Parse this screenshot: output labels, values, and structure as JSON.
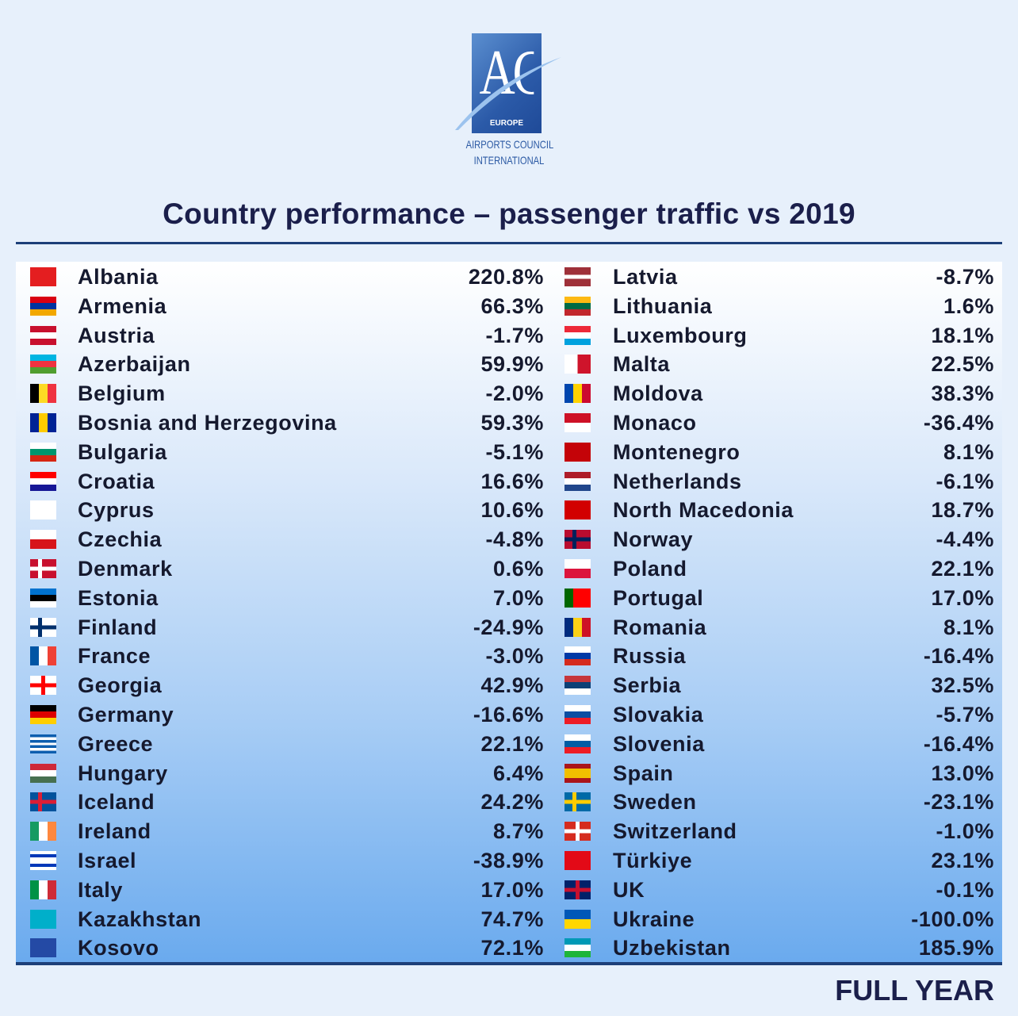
{
  "logo": {
    "acronym": "ACI",
    "region": "EUROPE",
    "line1": "AIRPORTS COUNCIL",
    "line2": "INTERNATIONAL"
  },
  "title": "Country performance – passenger traffic vs 2019",
  "footer": "FULL YEAR",
  "chart_data": {
    "type": "table",
    "title": "Country performance – passenger traffic vs 2019",
    "period": "FULL YEAR",
    "unit": "%",
    "columns": [
      [
        {
          "country": "Albania",
          "value": "220.8%",
          "flag": {
            "t": "s",
            "c": [
              "#e41e20"
            ]
          }
        },
        {
          "country": "Armenia",
          "value": "66.3%",
          "flag": {
            "t": "h",
            "c": [
              "#d90012",
              "#0033a0",
              "#f2a800"
            ]
          }
        },
        {
          "country": "Austria",
          "value": "-1.7%",
          "flag": {
            "t": "h",
            "c": [
              "#c8102e",
              "#ffffff",
              "#c8102e"
            ]
          }
        },
        {
          "country": "Azerbaijan",
          "value": "59.9%",
          "flag": {
            "t": "h",
            "c": [
              "#00b5e2",
              "#ef3340",
              "#509e2f"
            ]
          }
        },
        {
          "country": "Belgium",
          "value": "-2.0%",
          "flag": {
            "t": "v",
            "c": [
              "#000000",
              "#fdda24",
              "#ef3340"
            ]
          }
        },
        {
          "country": "Bosnia and Herzegovina",
          "value": "59.3%",
          "flag": {
            "t": "v",
            "c": [
              "#002395",
              "#fecb00",
              "#002395"
            ]
          }
        },
        {
          "country": "Bulgaria",
          "value": "-5.1%",
          "flag": {
            "t": "h",
            "c": [
              "#ffffff",
              "#00966e",
              "#d62612"
            ]
          }
        },
        {
          "country": "Croatia",
          "value": "16.6%",
          "flag": {
            "t": "h",
            "c": [
              "#ff0000",
              "#ffffff",
              "#171796"
            ]
          }
        },
        {
          "country": "Cyprus",
          "value": "10.6%",
          "flag": {
            "t": "s",
            "c": [
              "#ffffff"
            ]
          }
        },
        {
          "country": "Czechia",
          "value": "-4.8%",
          "flag": {
            "t": "h",
            "c": [
              "#ffffff",
              "#d7141a"
            ]
          }
        },
        {
          "country": "Denmark",
          "value": "0.6%",
          "flag": {
            "t": "x",
            "c": [
              "#c8102e",
              "#ffffff"
            ]
          }
        },
        {
          "country": "Estonia",
          "value": "7.0%",
          "flag": {
            "t": "h",
            "c": [
              "#0072ce",
              "#000000",
              "#ffffff"
            ]
          }
        },
        {
          "country": "Finland",
          "value": "-24.9%",
          "flag": {
            "t": "x",
            "c": [
              "#ffffff",
              "#002f6c"
            ]
          }
        },
        {
          "country": "France",
          "value": "-3.0%",
          "flag": {
            "t": "v",
            "c": [
              "#0055a4",
              "#ffffff",
              "#ef4135"
            ]
          }
        },
        {
          "country": "Georgia",
          "value": "42.9%",
          "flag": {
            "t": "p",
            "c": [
              "#ffffff",
              "#ff0000"
            ]
          }
        },
        {
          "country": "Germany",
          "value": "-16.6%",
          "flag": {
            "t": "h",
            "c": [
              "#000000",
              "#dd0000",
              "#ffce00"
            ]
          }
        },
        {
          "country": "Greece",
          "value": "22.1%",
          "flag": {
            "t": "h",
            "c": [
              "#0d5eaf",
              "#ffffff",
              "#0d5eaf",
              "#ffffff",
              "#0d5eaf",
              "#ffffff",
              "#0d5eaf"
            ]
          }
        },
        {
          "country": "Hungary",
          "value": "6.4%",
          "flag": {
            "t": "h",
            "c": [
              "#ce2939",
              "#ffffff",
              "#477050"
            ]
          }
        },
        {
          "country": "Iceland",
          "value": "24.2%",
          "flag": {
            "t": "x",
            "c": [
              "#02529c",
              "#dc1e35"
            ]
          }
        },
        {
          "country": "Ireland",
          "value": "8.7%",
          "flag": {
            "t": "v",
            "c": [
              "#169b62",
              "#ffffff",
              "#ff883e"
            ]
          }
        },
        {
          "country": "Israel",
          "value": "-38.9%",
          "flag": {
            "t": "h",
            "c": [
              "#ffffff",
              "#0038b8",
              "#ffffff",
              "#ffffff",
              "#0038b8",
              "#ffffff"
            ]
          }
        },
        {
          "country": "Italy",
          "value": "17.0%",
          "flag": {
            "t": "v",
            "c": [
              "#009246",
              "#ffffff",
              "#ce2b37"
            ]
          }
        },
        {
          "country": "Kazakhstan",
          "value": "74.7%",
          "flag": {
            "t": "s",
            "c": [
              "#00afca"
            ]
          }
        },
        {
          "country": "Kosovo",
          "value": "72.1%",
          "flag": {
            "t": "s",
            "c": [
              "#244aa5"
            ]
          }
        }
      ],
      [
        {
          "country": "Latvia",
          "value": "-8.7%",
          "flag": {
            "t": "h",
            "c": [
              "#9e3039",
              "#9e3039",
              "#ffffff",
              "#9e3039",
              "#9e3039"
            ]
          }
        },
        {
          "country": "Lithuania",
          "value": "1.6%",
          "flag": {
            "t": "h",
            "c": [
              "#fdb913",
              "#006a44",
              "#c1272d"
            ]
          }
        },
        {
          "country": "Luxembourg",
          "value": "18.1%",
          "flag": {
            "t": "h",
            "c": [
              "#ed2939",
              "#ffffff",
              "#00a1de"
            ]
          }
        },
        {
          "country": "Malta",
          "value": "22.5%",
          "flag": {
            "t": "v",
            "c": [
              "#ffffff",
              "#cf142b"
            ]
          }
        },
        {
          "country": "Moldova",
          "value": "38.3%",
          "flag": {
            "t": "v",
            "c": [
              "#0046ae",
              "#ffd200",
              "#cc092f"
            ]
          }
        },
        {
          "country": "Monaco",
          "value": "-36.4%",
          "flag": {
            "t": "h",
            "c": [
              "#ce1126",
              "#ffffff"
            ]
          }
        },
        {
          "country": "Montenegro",
          "value": "8.1%",
          "flag": {
            "t": "s",
            "c": [
              "#c40308"
            ]
          }
        },
        {
          "country": "Netherlands",
          "value": "-6.1%",
          "flag": {
            "t": "h",
            "c": [
              "#ae1c28",
              "#ffffff",
              "#21468b"
            ]
          }
        },
        {
          "country": "North Macedonia",
          "value": "18.7%",
          "flag": {
            "t": "s",
            "c": [
              "#d20000"
            ]
          }
        },
        {
          "country": "Norway",
          "value": "-4.4%",
          "flag": {
            "t": "x",
            "c": [
              "#ba0c2f",
              "#00205b"
            ]
          }
        },
        {
          "country": "Poland",
          "value": "22.1%",
          "flag": {
            "t": "h",
            "c": [
              "#ffffff",
              "#dc143c"
            ]
          }
        },
        {
          "country": "Portugal",
          "value": "17.0%",
          "flag": {
            "t": "v",
            "c": [
              "#006600",
              "#ff0000",
              "#ff0000"
            ]
          }
        },
        {
          "country": "Romania",
          "value": "8.1%",
          "flag": {
            "t": "v",
            "c": [
              "#002b7f",
              "#fcd116",
              "#ce1126"
            ]
          }
        },
        {
          "country": "Russia",
          "value": "-16.4%",
          "flag": {
            "t": "h",
            "c": [
              "#ffffff",
              "#0039a6",
              "#d52b1e"
            ]
          }
        },
        {
          "country": "Serbia",
          "value": "32.5%",
          "flag": {
            "t": "h",
            "c": [
              "#c6363c",
              "#0c4076",
              "#ffffff"
            ]
          }
        },
        {
          "country": "Slovakia",
          "value": "-5.7%",
          "flag": {
            "t": "h",
            "c": [
              "#ffffff",
              "#0b4ea2",
              "#ee1c25"
            ]
          }
        },
        {
          "country": "Slovenia",
          "value": "-16.4%",
          "flag": {
            "t": "h",
            "c": [
              "#ffffff",
              "#005da4",
              "#ed1c24"
            ]
          }
        },
        {
          "country": "Spain",
          "value": "13.0%",
          "flag": {
            "t": "h",
            "c": [
              "#aa151b",
              "#f1bf00",
              "#f1bf00",
              "#aa151b"
            ]
          }
        },
        {
          "country": "Sweden",
          "value": "-23.1%",
          "flag": {
            "t": "x",
            "c": [
              "#006aa7",
              "#fecc00"
            ]
          }
        },
        {
          "country": "Switzerland",
          "value": "-1.0%",
          "flag": {
            "t": "p",
            "c": [
              "#d52b1e",
              "#ffffff"
            ]
          }
        },
        {
          "country": "Türkiye",
          "value": "23.1%",
          "flag": {
            "t": "s",
            "c": [
              "#e30a17"
            ]
          }
        },
        {
          "country": "UK",
          "value": "-0.1%",
          "flag": {
            "t": "p",
            "c": [
              "#012169",
              "#c8102e"
            ]
          }
        },
        {
          "country": "Ukraine",
          "value": "-100.0%",
          "flag": {
            "t": "h",
            "c": [
              "#0057b7",
              "#ffd700"
            ]
          }
        },
        {
          "country": "Uzbekistan",
          "value": "185.9%",
          "flag": {
            "t": "h",
            "c": [
              "#0099b5",
              "#ffffff",
              "#1eb53a"
            ]
          }
        }
      ]
    ]
  }
}
